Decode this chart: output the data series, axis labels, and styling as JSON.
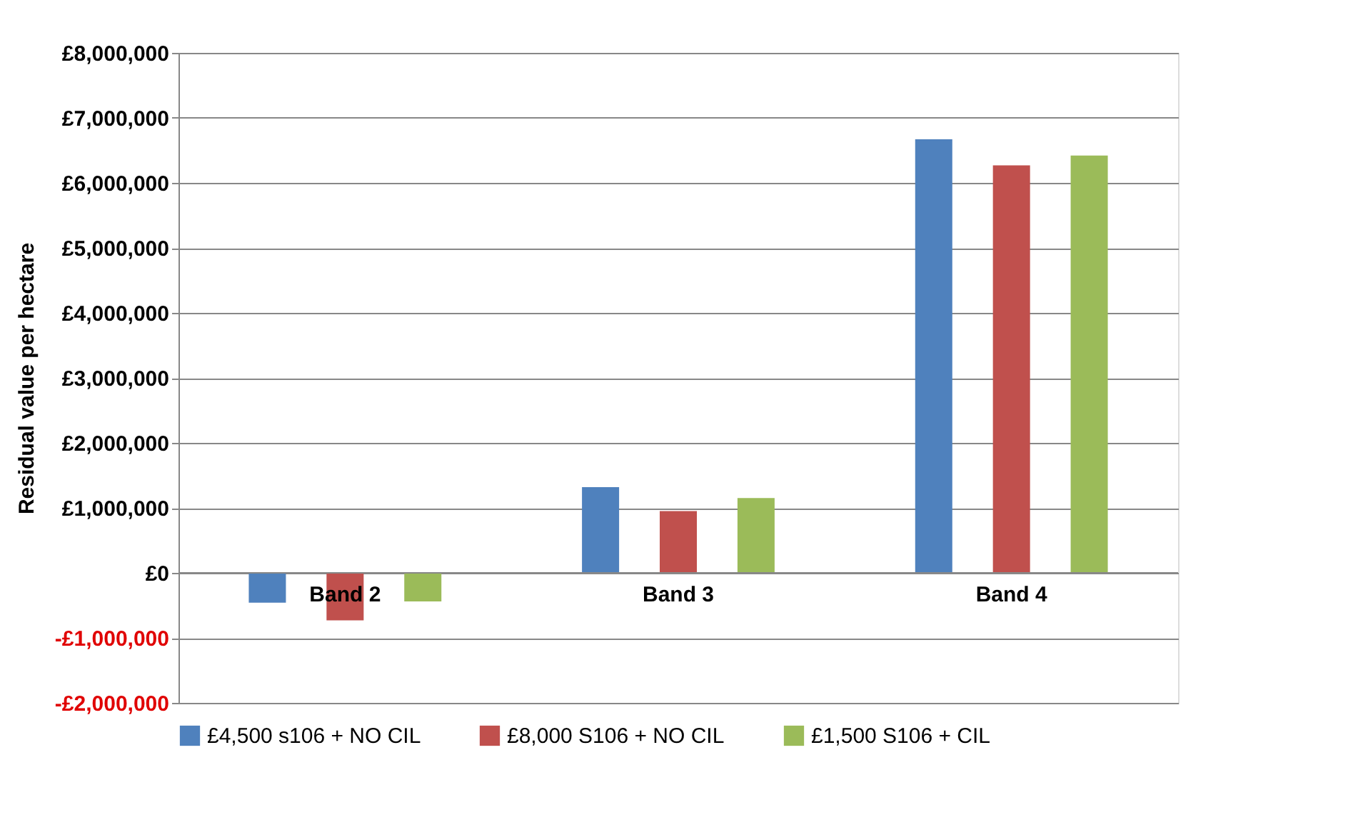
{
  "chart_data": {
    "type": "bar",
    "ylabel": "Residual value per hectare",
    "categories": [
      "Band 2",
      "Band 3",
      "Band 4"
    ],
    "series": [
      {
        "name": "£4,500 s106 + NO CIL",
        "color": "#4f81bd",
        "values": [
          -460000,
          1320000,
          6670000
        ]
      },
      {
        "name": "£8,000 S106 + NO CIL",
        "color": "#c0504d",
        "values": [
          -730000,
          950000,
          6270000
        ]
      },
      {
        "name": "£1,500 S106 + CIL",
        "color": "#9bbb59",
        "values": [
          -440000,
          1150000,
          6420000
        ]
      }
    ],
    "ylim": [
      -2000000,
      8000000
    ],
    "yticks": [
      {
        "value": -2000000,
        "label": "-£2,000,000"
      },
      {
        "value": -1000000,
        "label": "-£1,000,000"
      },
      {
        "value": 0,
        "label": "£0"
      },
      {
        "value": 1000000,
        "label": "£1,000,000"
      },
      {
        "value": 2000000,
        "label": "£2,000,000"
      },
      {
        "value": 3000000,
        "label": "£3,000,000"
      },
      {
        "value": 4000000,
        "label": "£4,000,000"
      },
      {
        "value": 5000000,
        "label": "£5,000,000"
      },
      {
        "value": 6000000,
        "label": "£6,000,000"
      },
      {
        "value": 7000000,
        "label": "£7,000,000"
      },
      {
        "value": 8000000,
        "label": "£8,000,000"
      }
    ],
    "grid": "y",
    "legend": "bottom"
  }
}
